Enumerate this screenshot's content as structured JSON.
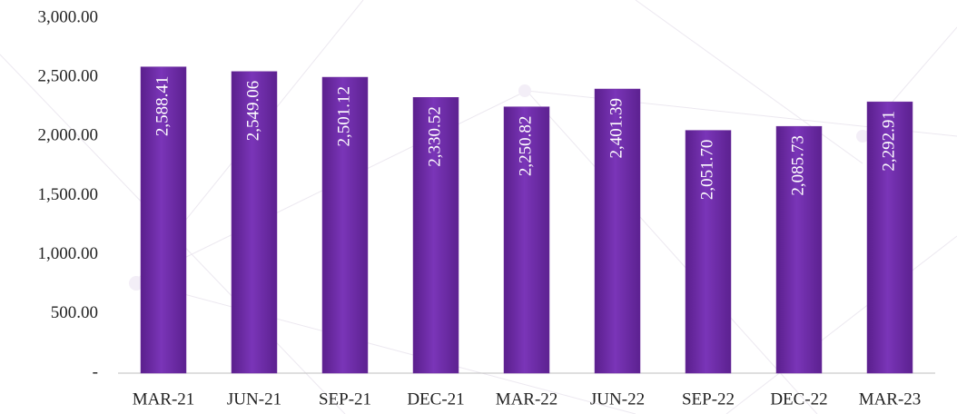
{
  "chart_data": {
    "type": "bar",
    "categories": [
      "MAR-21",
      "JUN-21",
      "SEP-21",
      "DEC-21",
      "MAR-22",
      "JUN-22",
      "SEP-22",
      "DEC-22",
      "MAR-23"
    ],
    "values": [
      2588.41,
      2549.06,
      2501.12,
      2330.52,
      2250.82,
      2401.39,
      2051.7,
      2085.73,
      2292.91
    ],
    "value_labels": [
      "2,588.41",
      "2,549.06",
      "2,501.12",
      "2,330.52",
      "2,250.82",
      "2,401.39",
      "2,051.70",
      "2,085.73",
      "2,292.91"
    ],
    "color": "#7030a0",
    "ylim": [
      0,
      3000
    ],
    "yticks": [
      {
        "value": 0,
        "label": "-"
      },
      {
        "value": 500,
        "label": "500.00"
      },
      {
        "value": 1000,
        "label": "1,000.00"
      },
      {
        "value": 1500,
        "label": "1,500.00"
      },
      {
        "value": 2000,
        "label": "2,000.00"
      },
      {
        "value": 2500,
        "label": "2,500.00"
      },
      {
        "value": 3000,
        "label": "3,000.00"
      }
    ],
    "grid": false
  }
}
